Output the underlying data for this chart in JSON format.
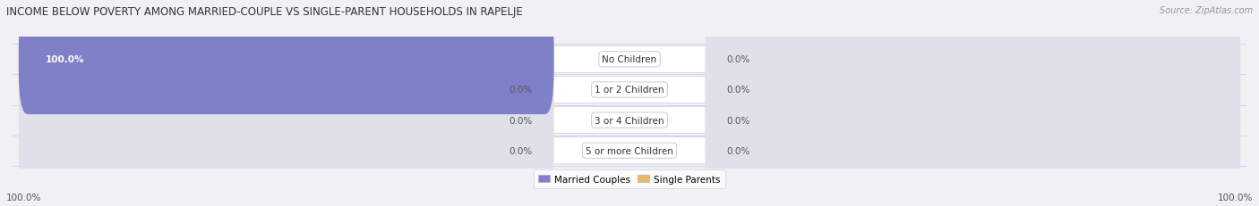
{
  "title": "INCOME BELOW POVERTY AMONG MARRIED-COUPLE VS SINGLE-PARENT HOUSEHOLDS IN RAPELJE",
  "source": "Source: ZipAtlas.com",
  "categories": [
    "No Children",
    "1 or 2 Children",
    "3 or 4 Children",
    "5 or more Children"
  ],
  "married_values": [
    100.0,
    0.0,
    0.0,
    0.0
  ],
  "single_values": [
    0.0,
    0.0,
    0.0,
    0.0
  ],
  "married_color": "#8080c8",
  "single_color": "#e8b870",
  "bar_bg_color": "#e0e0ea",
  "row_sep_color": "#ccccdd",
  "bg_color": "#f0f0f5",
  "legend_married": "Married Couples",
  "legend_single": "Single Parents",
  "title_fontsize": 8.5,
  "source_fontsize": 7,
  "label_fontsize": 7.5,
  "category_fontsize": 7.5,
  "max_val": 100,
  "figsize": [
    14.06,
    2.32
  ],
  "dpi": 100,
  "bottom_left_label": "100.0%",
  "bottom_right_label": "100.0%"
}
